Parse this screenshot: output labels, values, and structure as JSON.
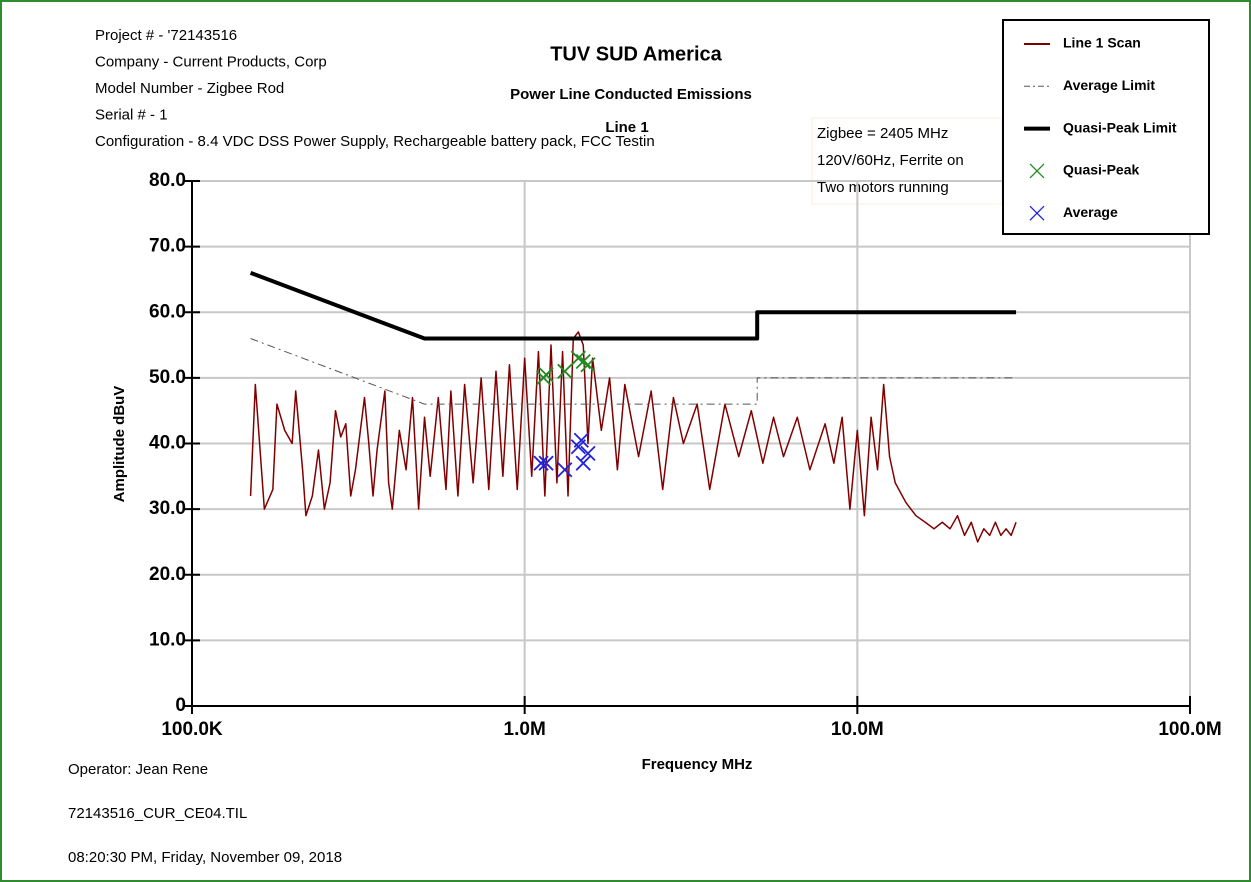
{
  "header": {
    "lines": [
      "Project # - '72143516",
      "Company - Current Products, Corp",
      "Model Number - Zigbee Rod",
      "Serial # - 1",
      "Configuration - 8.4 VDC DSS Power Supply, Rechargeable battery pack, FCC Testin"
    ]
  },
  "notes": [
    "Zigbee = 2405 MHz",
    "120V/60Hz, Ferrite on",
    "Two motors running"
  ],
  "footer": [
    "Operator: Jean Rene",
    "72143516_CUR_CE04.TIL",
    "08:20:30 PM, Friday, November 09, 2018"
  ],
  "chart_data": {
    "type": "line",
    "title": "TUV SUD America",
    "subtitle": "Power Line Conducted Emissions",
    "annotation": "Line 1",
    "x_label": "Frequency MHz",
    "y_label": "Amplitude dBuV",
    "xscale": "log",
    "xlim": [
      0.1,
      100
    ],
    "xticks": [
      {
        "value": 0.1,
        "label": "100.0K"
      },
      {
        "value": 1,
        "label": "1.0M"
      },
      {
        "value": 10,
        "label": "10.0M"
      },
      {
        "value": 100,
        "label": "100.0M"
      }
    ],
    "ylim": [
      0,
      80
    ],
    "yticks": [
      0,
      {
        "value": 10,
        "label": "10.0"
      },
      {
        "value": 20,
        "label": "20.0"
      },
      {
        "value": 30,
        "label": "30.0"
      },
      {
        "value": 40,
        "label": "40.0"
      },
      {
        "value": 50,
        "label": "50.0"
      },
      {
        "value": 60,
        "label": "60.0"
      },
      {
        "value": 70,
        "label": "70.0"
      },
      {
        "value": 80,
        "label": "80.0"
      }
    ],
    "grid": true,
    "legend": "top-right",
    "series": [
      {
        "name": "Line 1 Scan",
        "color": "#800000",
        "style": "solid",
        "x": [
          0.15,
          0.155,
          0.165,
          0.175,
          0.18,
          0.19,
          0.2,
          0.205,
          0.215,
          0.22,
          0.23,
          0.24,
          0.25,
          0.26,
          0.27,
          0.28,
          0.29,
          0.3,
          0.31,
          0.33,
          0.34,
          0.35,
          0.36,
          0.38,
          0.39,
          0.4,
          0.42,
          0.44,
          0.46,
          0.48,
          0.5,
          0.52,
          0.55,
          0.58,
          0.6,
          0.63,
          0.66,
          0.7,
          0.74,
          0.78,
          0.82,
          0.86,
          0.9,
          0.95,
          1.0,
          1.05,
          1.1,
          1.15,
          1.2,
          1.25,
          1.3,
          1.35,
          1.4,
          1.45,
          1.5,
          1.55,
          1.6,
          1.7,
          1.8,
          1.9,
          2.0,
          2.2,
          2.4,
          2.6,
          2.8,
          3.0,
          3.3,
          3.6,
          4.0,
          4.4,
          4.8,
          5.2,
          5.6,
          6.0,
          6.6,
          7.2,
          8.0,
          8.5,
          9.0,
          9.5,
          10,
          10.5,
          11,
          11.5,
          12,
          12.5,
          13,
          14,
          15,
          16,
          17,
          18,
          19,
          20,
          21,
          22,
          23,
          24,
          25,
          26,
          27,
          28,
          29,
          30
        ],
        "values": [
          32,
          49,
          30,
          33,
          46,
          42,
          40,
          48,
          36,
          29,
          32,
          39,
          30,
          34,
          45,
          41,
          43,
          32,
          36,
          47,
          40,
          32,
          39,
          48,
          34,
          30,
          42,
          36,
          47,
          30,
          44,
          35,
          47,
          33,
          48,
          32,
          49,
          34,
          50,
          33,
          51,
          35,
          52,
          33,
          53,
          35,
          54,
          32,
          55,
          34,
          54,
          32,
          56,
          57,
          55,
          40,
          53,
          42,
          50,
          36,
          49,
          38,
          48,
          33,
          47,
          40,
          46,
          33,
          46,
          38,
          45,
          37,
          44,
          38,
          44,
          36,
          43,
          37,
          44,
          30,
          42,
          29,
          44,
          36,
          49,
          38,
          34,
          31,
          29,
          28,
          27,
          28,
          27,
          29,
          26,
          28,
          25,
          27,
          26,
          28,
          26,
          27,
          26,
          28
        ]
      },
      {
        "name": "Average Limit",
        "color": "#555555",
        "style": "dashed",
        "x": [
          0.15,
          0.5,
          5,
          5,
          30
        ],
        "values": [
          56,
          46,
          46,
          50,
          50
        ]
      },
      {
        "name": "Quasi-Peak Limit",
        "color": "#000000",
        "style": "bold",
        "x": [
          0.15,
          0.5,
          5,
          5,
          30
        ],
        "values": [
          66,
          56,
          56,
          60,
          60
        ]
      },
      {
        "name": "Quasi-Peak",
        "color": "#228b22",
        "style": "markers",
        "x": [
          1.14,
          1.16,
          1.32,
          1.45,
          1.5,
          1.55
        ],
        "values": [
          50,
          50.5,
          51,
          53,
          52.5,
          52
        ]
      },
      {
        "name": "Average",
        "color": "#2222dd",
        "style": "markers",
        "x": [
          1.12,
          1.16,
          1.32,
          1.45,
          1.48,
          1.5,
          1.55
        ],
        "values": [
          37,
          37,
          36,
          39.5,
          40.5,
          37,
          38.5
        ]
      }
    ]
  }
}
